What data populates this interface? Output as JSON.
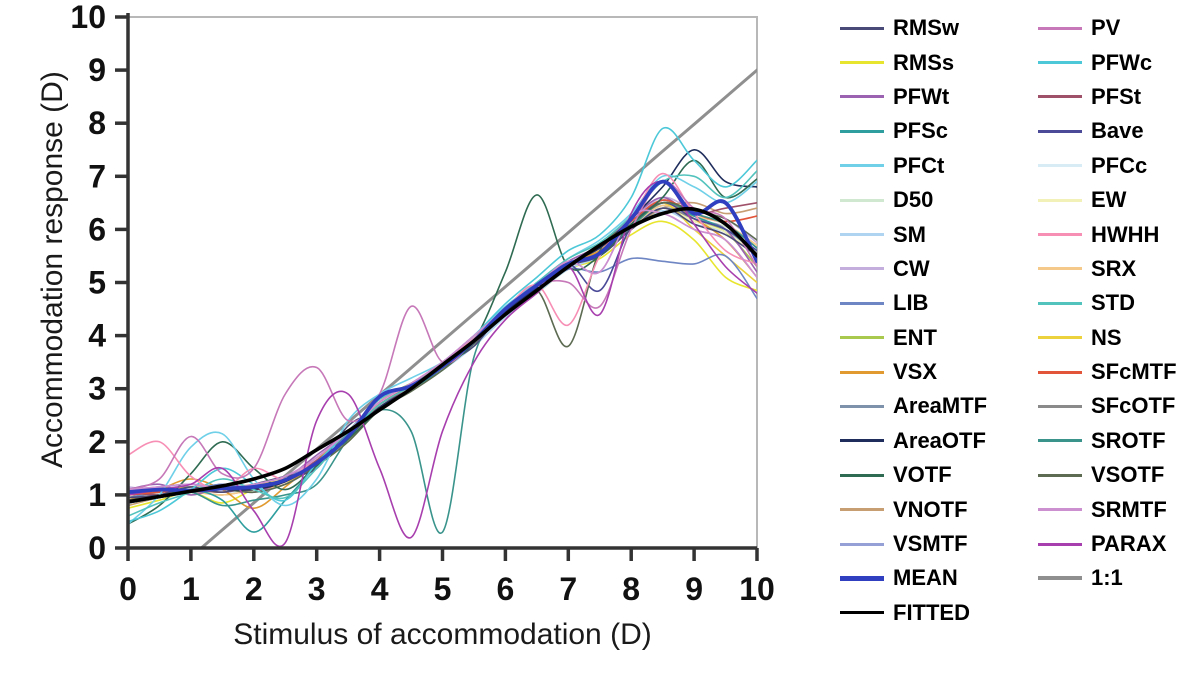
{
  "figure": {
    "background": "#ffffff",
    "axis_color": "#333333",
    "frame_color": "#b8b8b8",
    "tick_label_color": "#111111"
  },
  "chart_data": {
    "type": "line",
    "title": "",
    "xlabel": "Stimulus of accommodation (D)",
    "ylabel": "Accommodation response (D)",
    "xlim": [
      0,
      10
    ],
    "ylim": [
      0,
      10
    ],
    "xticks": [
      0,
      1,
      2,
      3,
      4,
      5,
      6,
      7,
      8,
      9,
      10
    ],
    "yticks": [
      0,
      1,
      2,
      3,
      4,
      5,
      6,
      7,
      8,
      9,
      10
    ],
    "grid": false,
    "legend_position": "right",
    "x": [
      0,
      0.5,
      1,
      1.5,
      2,
      2.5,
      3,
      3.5,
      4,
      4.5,
      5,
      5.5,
      6,
      6.5,
      7,
      7.5,
      8,
      8.5,
      9,
      9.5,
      10
    ],
    "series": [
      {
        "name": "RMSw",
        "color": "#4a4a78",
        "lw": 1.6,
        "llw": 3,
        "values": [
          0.95,
          1.0,
          1.15,
          1.05,
          1.2,
          1.35,
          1.5,
          2.3,
          2.6,
          3.0,
          3.45,
          3.8,
          4.5,
          4.85,
          5.3,
          5.5,
          6.0,
          6.4,
          6.1,
          5.9,
          5.5
        ]
      },
      {
        "name": "RMSs",
        "color": "#e8e52e",
        "lw": 1.6,
        "llw": 3,
        "values": [
          0.75,
          0.9,
          1.05,
          0.85,
          1.1,
          1.2,
          1.7,
          2.0,
          2.75,
          3.1,
          3.35,
          3.95,
          4.4,
          4.8,
          5.25,
          5.45,
          5.9,
          6.15,
          5.8,
          5.1,
          4.85
        ]
      },
      {
        "name": "PFWt",
        "color": "#9a62b0",
        "lw": 1.6,
        "llw": 3,
        "values": [
          1.1,
          1.2,
          1.0,
          1.15,
          1.05,
          1.3,
          1.75,
          2.2,
          2.8,
          3.1,
          3.5,
          4.0,
          4.5,
          5.0,
          5.4,
          5.7,
          6.2,
          6.6,
          6.2,
          6.0,
          5.2
        ]
      },
      {
        "name": "PFSc",
        "color": "#2e9e9e",
        "lw": 1.6,
        "llw": 3,
        "values": [
          0.9,
          1.0,
          1.1,
          0.9,
          0.3,
          0.9,
          1.55,
          2.1,
          2.65,
          3.0,
          3.35,
          3.85,
          4.4,
          4.85,
          5.3,
          5.55,
          6.05,
          6.5,
          6.25,
          6.0,
          5.6
        ]
      },
      {
        "name": "PFCt",
        "color": "#6fd0e8",
        "lw": 1.6,
        "llw": 3,
        "values": [
          0.45,
          1.0,
          1.9,
          2.15,
          1.3,
          0.8,
          1.3,
          2.4,
          2.9,
          3.2,
          3.5,
          4.0,
          4.55,
          5.0,
          5.45,
          5.8,
          6.3,
          7.0,
          6.8,
          6.5,
          6.9
        ]
      },
      {
        "name": "D50",
        "color": "#cfe8cf",
        "lw": 1.6,
        "llw": 3,
        "values": [
          1.05,
          1.1,
          1.15,
          1.1,
          1.15,
          1.3,
          1.65,
          2.15,
          2.7,
          3.05,
          3.4,
          3.9,
          4.45,
          4.9,
          5.3,
          5.6,
          6.05,
          6.45,
          6.2,
          6.05,
          5.65
        ]
      },
      {
        "name": "SM",
        "color": "#aed4f2",
        "lw": 1.6,
        "llw": 3,
        "values": [
          0.85,
          0.95,
          1.05,
          1.15,
          1.05,
          1.2,
          1.55,
          2.05,
          2.6,
          3.0,
          3.35,
          3.8,
          4.35,
          4.8,
          5.25,
          5.5,
          6.0,
          6.35,
          6.1,
          5.95,
          5.55
        ]
      },
      {
        "name": "CW",
        "color": "#c3aede",
        "lw": 1.6,
        "llw": 3,
        "values": [
          1.15,
          1.1,
          1.2,
          1.15,
          1.2,
          1.35,
          1.7,
          2.2,
          2.75,
          3.1,
          3.45,
          3.95,
          4.5,
          4.95,
          5.4,
          5.65,
          6.15,
          6.6,
          6.35,
          6.2,
          5.75
        ]
      },
      {
        "name": "LIB",
        "color": "#6f86c4",
        "lw": 1.6,
        "llw": 3,
        "values": [
          0.95,
          1.05,
          1.1,
          1.2,
          1.1,
          1.3,
          1.65,
          2.1,
          2.7,
          3.05,
          3.4,
          3.85,
          4.4,
          4.85,
          5.25,
          5.2,
          5.45,
          5.4,
          5.35,
          5.5,
          4.7
        ]
      },
      {
        "name": "ENT",
        "color": "#a8c84e",
        "lw": 1.6,
        "llw": 3,
        "values": [
          1.0,
          1.05,
          1.1,
          1.05,
          1.15,
          1.25,
          1.6,
          2.1,
          2.65,
          3.0,
          3.4,
          3.9,
          4.4,
          4.9,
          5.3,
          5.55,
          6.0,
          6.4,
          6.15,
          5.95,
          5.3
        ]
      },
      {
        "name": "VSX",
        "color": "#e09a30",
        "lw": 1.6,
        "llw": 3,
        "values": [
          0.9,
          1.1,
          1.3,
          1.1,
          0.75,
          1.15,
          1.65,
          2.2,
          2.8,
          3.1,
          3.45,
          3.95,
          4.5,
          4.9,
          5.35,
          5.6,
          6.1,
          6.5,
          6.2,
          5.8,
          5.1
        ]
      },
      {
        "name": "AreaMTF",
        "color": "#7e93ab",
        "lw": 1.6,
        "llw": 3,
        "values": [
          1.0,
          1.1,
          1.15,
          1.1,
          1.15,
          1.3,
          1.6,
          2.1,
          2.7,
          3.0,
          3.4,
          3.9,
          4.45,
          4.9,
          5.35,
          5.6,
          6.05,
          6.45,
          6.2,
          6.0,
          5.6
        ]
      },
      {
        "name": "AreaOTF",
        "color": "#1f2d5c",
        "lw": 1.6,
        "llw": 3,
        "values": [
          0.85,
          0.95,
          1.05,
          1.1,
          1.1,
          1.25,
          1.6,
          2.1,
          2.65,
          3.0,
          3.4,
          3.9,
          4.45,
          4.9,
          5.35,
          5.65,
          6.2,
          6.8,
          7.5,
          6.9,
          6.8
        ]
      },
      {
        "name": "VOTF",
        "color": "#2f6b52",
        "lw": 1.6,
        "llw": 3,
        "values": [
          0.45,
          0.8,
          1.4,
          2.0,
          1.5,
          1.1,
          1.55,
          2.05,
          2.6,
          3.0,
          3.4,
          3.9,
          5.2,
          6.65,
          5.3,
          5.5,
          6.1,
          6.6,
          7.3,
          6.6,
          6.95
        ]
      },
      {
        "name": "VNOTF",
        "color": "#c79d72",
        "lw": 1.6,
        "llw": 3,
        "values": [
          0.8,
          0.95,
          1.05,
          1.0,
          1.1,
          1.2,
          1.6,
          2.05,
          2.65,
          3.0,
          3.4,
          3.85,
          4.4,
          4.85,
          5.3,
          5.55,
          6.0,
          6.4,
          6.5,
          6.3,
          6.4
        ]
      },
      {
        "name": "VSMTF",
        "color": "#95a0d6",
        "lw": 1.6,
        "llw": 3,
        "values": [
          1.05,
          1.15,
          1.1,
          1.2,
          1.15,
          1.3,
          1.65,
          2.15,
          2.7,
          3.05,
          3.45,
          3.9,
          4.45,
          4.9,
          5.35,
          5.6,
          6.1,
          6.5,
          6.25,
          6.1,
          5.65
        ]
      },
      {
        "name": "MEAN",
        "color": "#2f3fbf",
        "lw": 3.8,
        "llw": 5,
        "values": [
          1.05,
          1.1,
          1.08,
          1.12,
          1.15,
          1.28,
          1.6,
          2.1,
          2.85,
          3.05,
          3.42,
          3.9,
          4.5,
          4.95,
          5.35,
          5.55,
          6.2,
          6.9,
          6.3,
          6.5,
          5.4
        ]
      },
      {
        "name": "FITTED",
        "color": "#000000",
        "lw": 3.6,
        "llw": 3.5,
        "values": [
          0.87,
          0.97,
          1.07,
          1.17,
          1.3,
          1.5,
          1.85,
          2.2,
          2.6,
          3.0,
          3.45,
          3.9,
          4.4,
          4.85,
          5.3,
          5.7,
          6.05,
          6.3,
          6.38,
          6.1,
          5.5
        ]
      },
      {
        "name": "PV",
        "color": "#c678b8",
        "lw": 1.6,
        "llw": 3,
        "values": [
          1.1,
          1.3,
          2.1,
          1.4,
          1.5,
          2.9,
          3.4,
          2.4,
          2.9,
          4.55,
          3.5,
          3.9,
          4.5,
          4.95,
          5.0,
          4.55,
          6.0,
          6.9,
          6.4,
          6.2,
          5.3
        ]
      },
      {
        "name": "PFWc",
        "color": "#4cc8d8",
        "lw": 1.6,
        "llw": 3,
        "values": [
          0.5,
          0.7,
          1.1,
          1.5,
          1.2,
          0.9,
          1.6,
          2.2,
          2.8,
          3.1,
          3.5,
          4.0,
          4.6,
          5.1,
          5.6,
          5.9,
          6.6,
          7.9,
          7.3,
          6.8,
          7.3
        ]
      },
      {
        "name": "PFSt",
        "color": "#a0516a",
        "lw": 1.6,
        "llw": 3,
        "values": [
          1.05,
          1.0,
          1.1,
          1.05,
          1.15,
          1.25,
          1.65,
          2.1,
          2.7,
          3.0,
          3.45,
          3.9,
          4.45,
          4.9,
          5.35,
          5.65,
          6.1,
          6.55,
          6.3,
          6.4,
          6.5
        ]
      },
      {
        "name": "Bave",
        "color": "#4a4a98",
        "lw": 1.6,
        "llw": 3,
        "values": [
          1.0,
          1.05,
          1.1,
          1.15,
          1.1,
          1.3,
          1.6,
          2.15,
          2.7,
          3.05,
          3.4,
          3.9,
          4.45,
          4.9,
          5.35,
          4.85,
          6.05,
          6.5,
          6.2,
          6.0,
          5.6
        ]
      },
      {
        "name": "PFCc",
        "color": "#d8ecf5",
        "lw": 1.6,
        "llw": 3,
        "values": [
          0.95,
          1.0,
          1.1,
          1.05,
          1.1,
          1.25,
          1.6,
          2.1,
          2.65,
          3.0,
          3.4,
          3.85,
          4.4,
          4.85,
          5.3,
          5.55,
          6.0,
          6.45,
          6.2,
          6.0,
          5.6
        ]
      },
      {
        "name": "EW",
        "color": "#f2f2b8",
        "lw": 1.6,
        "llw": 3,
        "values": [
          1.0,
          1.1,
          1.05,
          1.1,
          1.15,
          1.3,
          1.65,
          2.1,
          2.7,
          3.05,
          3.4,
          3.9,
          4.45,
          4.85,
          5.3,
          5.55,
          6.0,
          6.4,
          6.15,
          5.95,
          5.5
        ]
      },
      {
        "name": "HWHH",
        "color": "#f78fb5",
        "lw": 1.6,
        "llw": 3,
        "values": [
          1.75,
          2.0,
          1.35,
          1.1,
          1.5,
          1.3,
          1.7,
          2.2,
          2.75,
          3.1,
          3.5,
          3.95,
          4.5,
          4.95,
          4.2,
          5.5,
          6.2,
          7.05,
          6.3,
          5.6,
          5.35
        ]
      },
      {
        "name": "SRX",
        "color": "#f5c98a",
        "lw": 1.6,
        "llw": 3,
        "values": [
          0.9,
          1.0,
          1.05,
          1.0,
          1.1,
          1.2,
          1.6,
          2.05,
          2.65,
          3.0,
          3.35,
          3.85,
          4.4,
          4.85,
          5.3,
          5.55,
          6.05,
          6.45,
          6.25,
          6.1,
          5.7
        ]
      },
      {
        "name": "STD",
        "color": "#53c3bd",
        "lw": 1.6,
        "llw": 3,
        "values": [
          0.6,
          0.85,
          1.05,
          1.3,
          1.1,
          0.95,
          1.5,
          2.15,
          2.7,
          3.05,
          3.45,
          3.95,
          4.5,
          5.0,
          5.45,
          5.75,
          6.25,
          6.9,
          7.0,
          6.6,
          7.1
        ]
      },
      {
        "name": "NS",
        "color": "#ecd23c",
        "lw": 1.6,
        "llw": 3,
        "values": [
          0.95,
          1.05,
          1.15,
          1.1,
          1.2,
          1.3,
          1.65,
          2.15,
          2.7,
          3.05,
          3.45,
          3.9,
          4.45,
          4.9,
          5.35,
          5.6,
          6.1,
          6.5,
          6.0,
          5.5,
          5.0
        ]
      },
      {
        "name": "SFcMTF",
        "color": "#e2553a",
        "lw": 1.6,
        "llw": 3,
        "values": [
          1.0,
          1.05,
          1.1,
          1.15,
          1.1,
          1.25,
          1.6,
          2.1,
          2.7,
          3.05,
          3.4,
          3.9,
          4.45,
          4.9,
          5.35,
          5.65,
          6.15,
          6.55,
          6.3,
          6.15,
          6.25
        ]
      },
      {
        "name": "SFcOTF",
        "color": "#8a8a8a",
        "lw": 1.6,
        "llw": 3,
        "values": [
          1.0,
          1.05,
          1.1,
          1.1,
          1.15,
          1.25,
          1.6,
          2.1,
          2.65,
          3.0,
          3.4,
          3.85,
          4.4,
          4.85,
          5.3,
          5.55,
          6.0,
          6.4,
          6.2,
          6.0,
          5.55
        ]
      },
      {
        "name": "SROTF",
        "color": "#3a948c",
        "lw": 1.6,
        "llw": 3,
        "values": [
          0.85,
          0.95,
          1.05,
          0.8,
          0.9,
          1.0,
          1.2,
          2.05,
          2.6,
          2.2,
          0.3,
          3.6,
          4.4,
          4.85,
          5.3,
          5.55,
          6.05,
          6.5,
          6.3,
          6.1,
          5.65
        ]
      },
      {
        "name": "VSOTF",
        "color": "#5d6b52",
        "lw": 1.6,
        "llw": 3,
        "values": [
          0.9,
          1.0,
          1.05,
          1.1,
          1.05,
          1.2,
          1.55,
          2.0,
          2.6,
          2.95,
          3.35,
          3.85,
          4.4,
          4.85,
          3.8,
          5.6,
          6.1,
          6.5,
          6.35,
          6.2,
          5.8
        ]
      },
      {
        "name": "SRMTF",
        "color": "#cc8fd0",
        "lw": 1.6,
        "llw": 3,
        "values": [
          1.1,
          1.15,
          1.2,
          1.1,
          1.2,
          1.35,
          1.7,
          2.2,
          2.75,
          3.1,
          3.5,
          4.0,
          4.5,
          4.95,
          5.4,
          5.2,
          6.25,
          6.3,
          6.0,
          5.8,
          5.1
        ]
      },
      {
        "name": "PARAX",
        "color": "#a83fae",
        "lw": 1.6,
        "llw": 3,
        "values": [
          1.0,
          1.1,
          1.2,
          1.5,
          0.7,
          0.1,
          2.4,
          2.9,
          1.5,
          0.2,
          2.2,
          3.5,
          4.3,
          4.8,
          5.3,
          4.4,
          6.3,
          6.9,
          6.1,
          5.3,
          4.8
        ]
      },
      {
        "name": "1:1",
        "color": "#8f8f8f",
        "lw": 3,
        "llw": 4,
        "values": [
          -1.19,
          -0.68,
          -0.17,
          0.34,
          0.85,
          1.36,
          1.86,
          2.37,
          2.88,
          3.39,
          3.9,
          4.41,
          4.92,
          5.43,
          5.94,
          6.45,
          6.96,
          7.47,
          7.98,
          8.49,
          9.0
        ]
      }
    ],
    "draw_order": [
      "1:1",
      "RMSs",
      "D50",
      "SM",
      "CW",
      "ENT",
      "AreaMTF",
      "VNOTF",
      "VSMTF",
      "PFCc",
      "EW",
      "SRX",
      "NS",
      "SFcOTF",
      "PFWt",
      "PFSc",
      "VSX",
      "LIB",
      "PFSt",
      "Bave",
      "SFcMTF",
      "SROTF",
      "VSOTF",
      "SRMTF",
      "RMSw",
      "AreaOTF",
      "VOTF",
      "PFCt",
      "PFWc",
      "STD",
      "HWHH",
      "PV",
      "SRMTF",
      "PARAX",
      "MEAN",
      "FITTED"
    ],
    "legend": {
      "columns": [
        [
          "RMSw",
          "RMSs",
          "PFWt",
          "PFSc",
          "PFCt",
          "D50",
          "SM",
          "CW",
          "LIB",
          "ENT",
          "VSX",
          "AreaMTF",
          "AreaOTF",
          "VOTF",
          "VNOTF",
          "VSMTF",
          "MEAN",
          "FITTED"
        ],
        [
          "PV",
          "PFWc",
          "PFSt",
          "Bave",
          "PFCc",
          "EW",
          "HWHH",
          "SRX",
          "STD",
          "NS",
          "SFcMTF",
          "SFcOTF",
          "SROTF",
          "VSOTF",
          "SRMTF",
          "PARAX",
          "1:1"
        ]
      ]
    }
  }
}
